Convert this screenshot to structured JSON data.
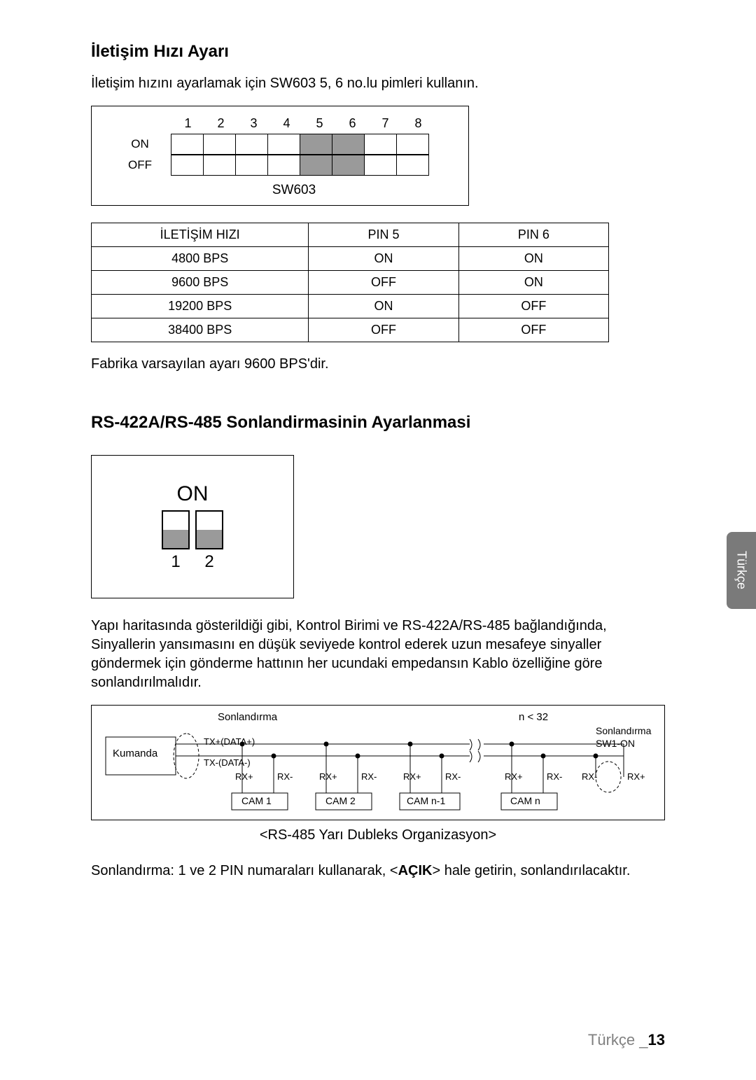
{
  "section1": {
    "title": "İletişim Hızı Ayarı",
    "intro": "İletişim hızını ayarlamak için SW603 5, 6 no.lu pimleri kullanın.",
    "footnote": "Fabrika varsayılan ayarı 9600 BPS'dir."
  },
  "dip": {
    "pin_numbers": [
      "1",
      "2",
      "3",
      "4",
      "5",
      "6",
      "7",
      "8"
    ],
    "row_labels": [
      "ON",
      "OFF"
    ],
    "shaded_cols": [
      5,
      6
    ],
    "caption": "SW603",
    "cell_bg_shaded": "#9a9a9a"
  },
  "comm_table": {
    "headers": [
      "İLETİŞİM HIZI",
      "PIN 5",
      "PIN 6"
    ],
    "rows": [
      [
        "4800 BPS",
        "ON",
        "ON"
      ],
      [
        "9600 BPS",
        "OFF",
        "ON"
      ],
      [
        "19200 BPS",
        "ON",
        "OFF"
      ],
      [
        "38400 BPS",
        "OFF",
        "OFF"
      ]
    ]
  },
  "section2": {
    "title": "RS-422A/RS-485 Sonlandirmasinin Ayarlanmasi",
    "para": "Yapı haritasında gösterildiği gibi, Kontrol Birimi ve RS-422A/RS-485 bağlandığında, Sinyallerin yansımasını en düşük seviyede kontrol ederek uzun mesafeye sinyaller göndermek için gönderme hattının her ucundaki empedansın Kablo özelliğine göre sonlandırılmalıdır.",
    "note_prefix": "Sonlandırma: 1 ve 2 PIN numaraları kullanarak, <",
    "note_bold": "AÇIK",
    "note_suffix": "> hale getirin, sonlandırılacaktır."
  },
  "sw1": {
    "on_label": "ON",
    "nums": [
      "1",
      "2"
    ],
    "slider_bg": "#9a9a9a"
  },
  "topo": {
    "labels": {
      "sonlandirma": "Sonlandırma",
      "kumanda": "Kumanda",
      "txp": "TX+(DATA+)",
      "txm": "TX-(DATA-)",
      "rxp": "RX+",
      "rxm": "RX-",
      "cam1": "CAM 1",
      "cam2": "CAM 2",
      "camn1": "CAM n-1",
      "camn": "CAM n",
      "n": "n < 32",
      "term": "Sonlandırma",
      "sw1on": "SW1-ON",
      "caption": "<RS-485 Yarı Dubleks Organizasyon>"
    },
    "line_color": "#000000"
  },
  "side_tab": "Türkçe",
  "footer": {
    "lang": "Türkçe _",
    "page": "13"
  },
  "colors": {
    "text": "#000000",
    "bg": "#ffffff",
    "tab_bg": "#7a7a7a",
    "footer_gray": "#808080"
  }
}
